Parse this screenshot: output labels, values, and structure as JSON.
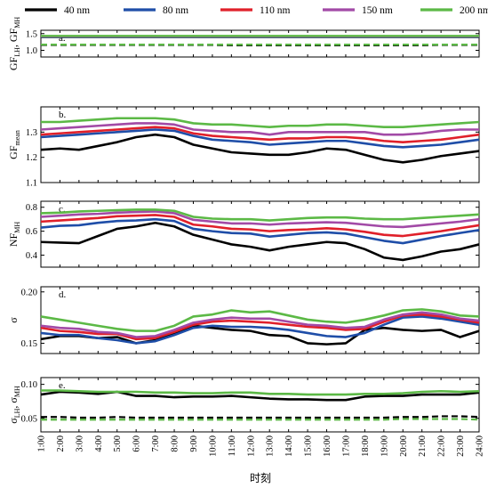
{
  "chart_data": {
    "type": "line",
    "xlabel": "时刻",
    "categories": [
      "1:00",
      "2:00",
      "3:00",
      "4:00",
      "5:00",
      "6:00",
      "7:00",
      "8:00",
      "9:00",
      "10:00",
      "11:00",
      "12:00",
      "13:00",
      "14:00",
      "15:00",
      "16:00",
      "17:00",
      "18:00",
      "19:00",
      "20:00",
      "21:00",
      "22:00",
      "23:00",
      "24:00"
    ],
    "legend": {
      "placement": "top",
      "entries": [
        {
          "label": "40 nm",
          "color": "#000000"
        },
        {
          "label": "80 nm",
          "color": "#1f4ea8"
        },
        {
          "label": "110 nm",
          "color": "#e0202a"
        },
        {
          "label": "150 nm",
          "color": "#a24aa6"
        },
        {
          "label": "200 nm",
          "color": "#5cb946"
        }
      ]
    },
    "panels": [
      {
        "label": "a.",
        "ylabel_main": "GF",
        "ylabel_sub1": "LH",
        "ylabel_mid": ", GF",
        "ylabel_sub2": "MH",
        "ylim": [
          0.8,
          1.6
        ],
        "yticks": [
          1.0,
          1.5
        ],
        "yticklabels": [
          "1.0",
          "1.5"
        ],
        "series": [
          {
            "color": "#000000",
            "dashed": false,
            "values": [
              1.4,
              1.4,
              1.4,
              1.4,
              1.4,
              1.4,
              1.4,
              1.4,
              1.4,
              1.4,
              1.4,
              1.4,
              1.4,
              1.4,
              1.4,
              1.4,
              1.4,
              1.4,
              1.4,
              1.4,
              1.4,
              1.4,
              1.4,
              1.4
            ]
          },
          {
            "color": "#1f4ea8",
            "dashed": false,
            "values": [
              1.41,
              1.41,
              1.41,
              1.41,
              1.41,
              1.41,
              1.41,
              1.41,
              1.41,
              1.41,
              1.41,
              1.41,
              1.41,
              1.41,
              1.41,
              1.41,
              1.41,
              1.41,
              1.41,
              1.41,
              1.41,
              1.41,
              1.41,
              1.41
            ]
          },
          {
            "color": "#e0202a",
            "dashed": false,
            "values": [
              1.42,
              1.42,
              1.42,
              1.42,
              1.42,
              1.42,
              1.42,
              1.42,
              1.42,
              1.42,
              1.42,
              1.42,
              1.42,
              1.42,
              1.42,
              1.42,
              1.42,
              1.42,
              1.42,
              1.42,
              1.42,
              1.42,
              1.42,
              1.42
            ]
          },
          {
            "color": "#a24aa6",
            "dashed": false,
            "values": [
              1.42,
              1.42,
              1.42,
              1.42,
              1.42,
              1.42,
              1.42,
              1.42,
              1.42,
              1.42,
              1.42,
              1.42,
              1.42,
              1.42,
              1.42,
              1.42,
              1.42,
              1.42,
              1.42,
              1.42,
              1.42,
              1.42,
              1.42,
              1.42
            ]
          },
          {
            "color": "#5cb946",
            "dashed": false,
            "values": [
              1.43,
              1.43,
              1.43,
              1.43,
              1.43,
              1.43,
              1.43,
              1.43,
              1.43,
              1.43,
              1.43,
              1.43,
              1.43,
              1.43,
              1.43,
              1.43,
              1.43,
              1.43,
              1.43,
              1.43,
              1.43,
              1.43,
              1.43,
              1.43
            ]
          },
          {
            "color": "#000000",
            "dashed": true,
            "values": [
              1.16,
              1.16,
              1.16,
              1.16,
              1.16,
              1.16,
              1.16,
              1.16,
              1.16,
              1.16,
              1.15,
              1.15,
              1.15,
              1.15,
              1.15,
              1.15,
              1.15,
              1.15,
              1.15,
              1.15,
              1.15,
              1.16,
              1.16,
              1.16
            ]
          },
          {
            "color": "#5cb946",
            "dashed": true,
            "values": [
              1.17,
              1.17,
              1.17,
              1.17,
              1.17,
              1.17,
              1.17,
              1.17,
              1.17,
              1.17,
              1.17,
              1.17,
              1.17,
              1.17,
              1.17,
              1.17,
              1.17,
              1.17,
              1.17,
              1.17,
              1.17,
              1.17,
              1.17,
              1.17
            ]
          }
        ]
      },
      {
        "label": "b.",
        "ylabel_main": "GF",
        "ylabel_sub1": "mean",
        "ylabel_mid": "",
        "ylabel_sub2": "",
        "ylim": [
          1.1,
          1.4
        ],
        "yticks": [
          1.1,
          1.2,
          1.3
        ],
        "yticklabels": [
          "1.1",
          "1.2",
          "1.3"
        ],
        "series": [
          {
            "color": "#000000",
            "dashed": false,
            "values": [
              1.23,
              1.235,
              1.23,
              1.245,
              1.26,
              1.28,
              1.29,
              1.28,
              1.25,
              1.235,
              1.22,
              1.215,
              1.21,
              1.21,
              1.22,
              1.235,
              1.23,
              1.21,
              1.19,
              1.18,
              1.19,
              1.205,
              1.215,
              1.225
            ]
          },
          {
            "color": "#1f4ea8",
            "dashed": false,
            "values": [
              1.28,
              1.285,
              1.29,
              1.295,
              1.3,
              1.305,
              1.31,
              1.305,
              1.285,
              1.27,
              1.265,
              1.26,
              1.25,
              1.255,
              1.26,
              1.265,
              1.265,
              1.255,
              1.245,
              1.24,
              1.245,
              1.25,
              1.26,
              1.27
            ]
          },
          {
            "color": "#e0202a",
            "dashed": false,
            "values": [
              1.29,
              1.295,
              1.3,
              1.305,
              1.31,
              1.315,
              1.32,
              1.315,
              1.295,
              1.285,
              1.28,
              1.275,
              1.27,
              1.275,
              1.275,
              1.28,
              1.28,
              1.275,
              1.265,
              1.26,
              1.265,
              1.27,
              1.28,
              1.29
            ]
          },
          {
            "color": "#a24aa6",
            "dashed": false,
            "values": [
              1.31,
              1.315,
              1.32,
              1.325,
              1.33,
              1.335,
              1.335,
              1.33,
              1.31,
              1.305,
              1.3,
              1.3,
              1.29,
              1.3,
              1.3,
              1.3,
              1.3,
              1.3,
              1.29,
              1.29,
              1.295,
              1.305,
              1.31,
              1.31
            ]
          },
          {
            "color": "#5cb946",
            "dashed": false,
            "values": [
              1.34,
              1.34,
              1.345,
              1.35,
              1.355,
              1.355,
              1.355,
              1.35,
              1.335,
              1.33,
              1.33,
              1.325,
              1.32,
              1.325,
              1.325,
              1.33,
              1.33,
              1.325,
              1.32,
              1.32,
              1.325,
              1.33,
              1.335,
              1.34
            ]
          }
        ]
      },
      {
        "label": "c.",
        "ylabel_main": "NF",
        "ylabel_sub1": "MH",
        "ylabel_mid": "",
        "ylabel_sub2": "",
        "ylim": [
          0.3,
          0.85
        ],
        "yticks": [
          0.4,
          0.6,
          0.8
        ],
        "yticklabels": [
          "0.4",
          "0.6",
          "0.8"
        ],
        "series": [
          {
            "color": "#000000",
            "dashed": false,
            "values": [
              0.51,
              0.505,
              0.5,
              0.56,
              0.62,
              0.64,
              0.67,
              0.64,
              0.57,
              0.53,
              0.49,
              0.47,
              0.44,
              0.47,
              0.49,
              0.51,
              0.5,
              0.45,
              0.38,
              0.36,
              0.39,
              0.43,
              0.45,
              0.49
            ]
          },
          {
            "color": "#1f4ea8",
            "dashed": false,
            "values": [
              0.63,
              0.645,
              0.65,
              0.67,
              0.685,
              0.69,
              0.7,
              0.685,
              0.62,
              0.6,
              0.585,
              0.58,
              0.555,
              0.57,
              0.585,
              0.59,
              0.58,
              0.55,
              0.52,
              0.5,
              0.53,
              0.56,
              0.585,
              0.61
            ]
          },
          {
            "color": "#e0202a",
            "dashed": false,
            "values": [
              0.68,
              0.69,
              0.7,
              0.71,
              0.725,
              0.73,
              0.735,
              0.72,
              0.655,
              0.64,
              0.62,
              0.615,
              0.6,
              0.61,
              0.615,
              0.625,
              0.615,
              0.595,
              0.57,
              0.56,
              0.58,
              0.6,
              0.625,
              0.65
            ]
          },
          {
            "color": "#a24aa6",
            "dashed": false,
            "values": [
              0.72,
              0.73,
              0.74,
              0.745,
              0.755,
              0.76,
              0.765,
              0.75,
              0.695,
              0.68,
              0.665,
              0.665,
              0.655,
              0.665,
              0.67,
              0.675,
              0.67,
              0.655,
              0.64,
              0.635,
              0.65,
              0.665,
              0.68,
              0.7
            ]
          },
          {
            "color": "#5cb946",
            "dashed": false,
            "values": [
              0.75,
              0.755,
              0.765,
              0.77,
              0.775,
              0.78,
              0.78,
              0.77,
              0.72,
              0.705,
              0.7,
              0.7,
              0.69,
              0.7,
              0.71,
              0.715,
              0.715,
              0.705,
              0.7,
              0.7,
              0.71,
              0.72,
              0.73,
              0.74
            ]
          }
        ]
      },
      {
        "label": "d.",
        "ylabel_main": "σ",
        "ylabel_sub1": "",
        "ylabel_mid": "",
        "ylabel_sub2": "",
        "ylim": [
          0.14,
          0.205
        ],
        "yticks": [
          0.15,
          0.2
        ],
        "yticklabels": [
          "0.15",
          "0.20"
        ],
        "series": [
          {
            "color": "#000000",
            "dashed": false,
            "values": [
              0.154,
              0.157,
              0.157,
              0.155,
              0.156,
              0.15,
              0.153,
              0.16,
              0.167,
              0.165,
              0.163,
              0.162,
              0.158,
              0.157,
              0.15,
              0.149,
              0.15,
              0.163,
              0.165,
              0.163,
              0.162,
              0.163,
              0.156,
              0.162
            ]
          },
          {
            "color": "#1f4ea8",
            "dashed": false,
            "values": [
              0.16,
              0.158,
              0.158,
              0.155,
              0.153,
              0.15,
              0.152,
              0.158,
              0.165,
              0.167,
              0.166,
              0.166,
              0.165,
              0.163,
              0.16,
              0.157,
              0.156,
              0.16,
              0.168,
              0.175,
              0.176,
              0.174,
              0.171,
              0.168
            ]
          },
          {
            "color": "#e0202a",
            "dashed": false,
            "values": [
              0.165,
              0.162,
              0.161,
              0.159,
              0.159,
              0.154,
              0.155,
              0.161,
              0.168,
              0.171,
              0.172,
              0.171,
              0.17,
              0.168,
              0.166,
              0.165,
              0.163,
              0.164,
              0.171,
              0.177,
              0.178,
              0.176,
              0.173,
              0.17
            ]
          },
          {
            "color": "#a24aa6",
            "dashed": false,
            "values": [
              0.167,
              0.165,
              0.164,
              0.161,
              0.16,
              0.156,
              0.157,
              0.163,
              0.17,
              0.173,
              0.175,
              0.174,
              0.174,
              0.171,
              0.168,
              0.167,
              0.165,
              0.166,
              0.173,
              0.178,
              0.18,
              0.178,
              0.174,
              0.172
            ]
          },
          {
            "color": "#5cb946",
            "dashed": false,
            "values": [
              0.176,
              0.173,
              0.17,
              0.167,
              0.164,
              0.162,
              0.162,
              0.167,
              0.176,
              0.178,
              0.182,
              0.18,
              0.181,
              0.177,
              0.173,
              0.171,
              0.17,
              0.173,
              0.177,
              0.182,
              0.183,
              0.181,
              0.177,
              0.176
            ]
          }
        ]
      },
      {
        "label": "e.",
        "ylabel_main": "σ",
        "ylabel_sub1": "LH",
        "ylabel_mid": ", σ",
        "ylabel_sub2": "MH",
        "ylim": [
          0.03,
          0.11
        ],
        "yticks": [
          0.05,
          0.1
        ],
        "yticklabels": [
          "0.05",
          "0.10"
        ],
        "series": [
          {
            "color": "#000000",
            "dashed": false,
            "values": [
              0.085,
              0.089,
              0.088,
              0.086,
              0.089,
              0.083,
              0.083,
              0.081,
              0.082,
              0.082,
              0.083,
              0.081,
              0.079,
              0.078,
              0.078,
              0.077,
              0.077,
              0.082,
              0.083,
              0.083,
              0.085,
              0.085,
              0.085,
              0.088
            ]
          },
          {
            "color": "#5cb946",
            "dashed": false,
            "values": [
              0.091,
              0.091,
              0.09,
              0.089,
              0.089,
              0.089,
              0.088,
              0.088,
              0.087,
              0.087,
              0.088,
              0.088,
              0.086,
              0.086,
              0.085,
              0.085,
              0.085,
              0.086,
              0.086,
              0.087,
              0.089,
              0.09,
              0.089,
              0.09
            ]
          },
          {
            "color": "#000000",
            "dashed": true,
            "values": [
              0.052,
              0.052,
              0.051,
              0.051,
              0.052,
              0.051,
              0.051,
              0.051,
              0.051,
              0.051,
              0.051,
              0.051,
              0.051,
              0.051,
              0.051,
              0.051,
              0.051,
              0.051,
              0.051,
              0.052,
              0.052,
              0.053,
              0.053,
              0.052
            ]
          },
          {
            "color": "#5cb946",
            "dashed": true,
            "values": [
              0.048,
              0.048,
              0.048,
              0.048,
              0.048,
              0.048,
              0.048,
              0.048,
              0.048,
              0.048,
              0.048,
              0.048,
              0.048,
              0.048,
              0.048,
              0.048,
              0.048,
              0.048,
              0.048,
              0.049,
              0.049,
              0.049,
              0.049,
              0.048
            ]
          }
        ]
      }
    ]
  }
}
